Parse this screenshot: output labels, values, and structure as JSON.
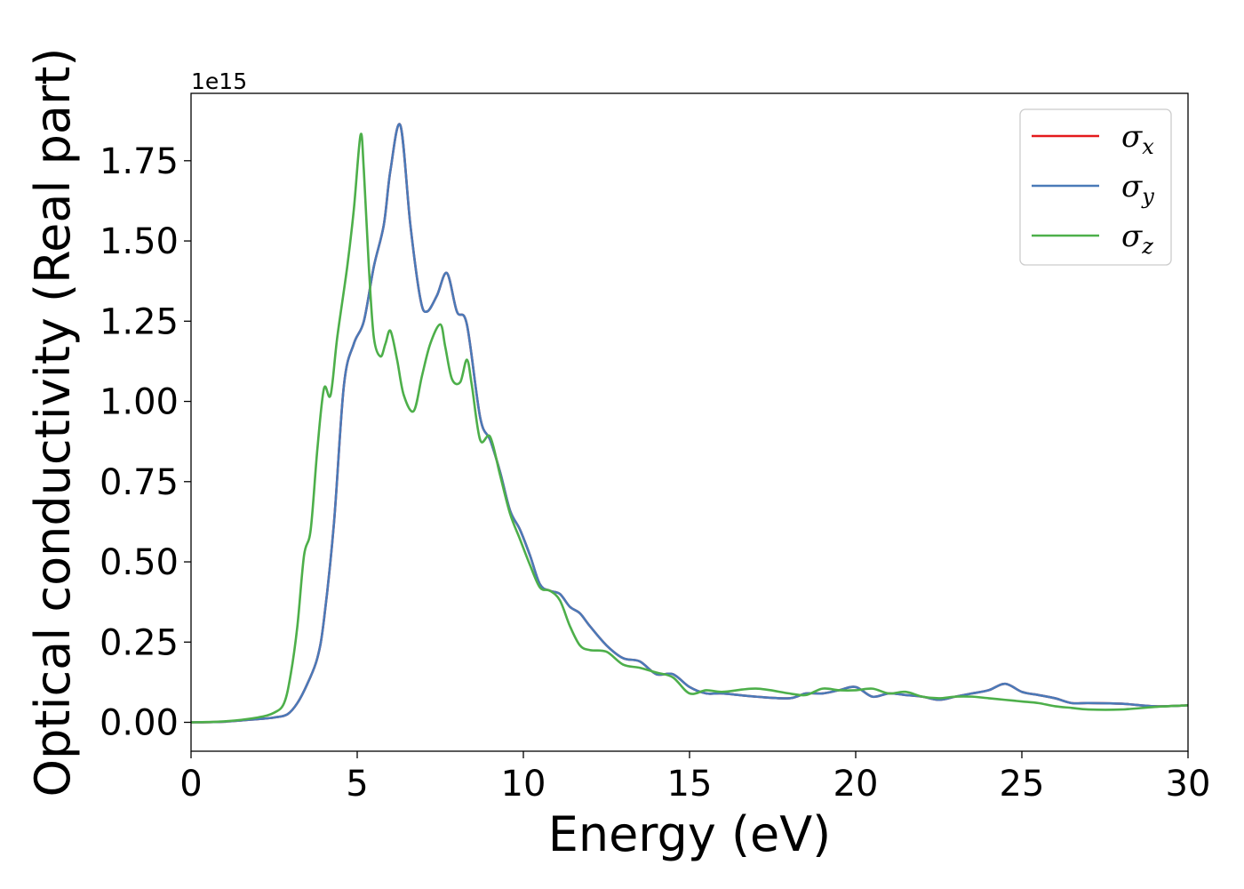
{
  "chart_data": {
    "type": "line",
    "title": "",
    "xlabel": "Energy (eV)",
    "ylabel": "Optical conductivity (Real part)",
    "y_offset_label": "1e15",
    "y_scale": 1000000000000000.0,
    "xlim": [
      0,
      30
    ],
    "ylim": [
      -0.09,
      1.96
    ],
    "xticks": [
      0,
      5,
      10,
      15,
      20,
      25,
      30
    ],
    "xtick_labels": [
      "0",
      "5",
      "10",
      "15",
      "20",
      "25",
      "30"
    ],
    "yticks": [
      0,
      0.25,
      0.5,
      0.75,
      1.0,
      1.25,
      1.5,
      1.75
    ],
    "ytick_labels": [
      "0.00",
      "0.25",
      "0.50",
      "0.75",
      "1.00",
      "1.25",
      "1.50",
      "1.75"
    ],
    "grid": false,
    "legend_position": "top-right",
    "series": [
      {
        "name": "σx",
        "name_base": "σ",
        "name_sub": "x",
        "color": "#e41a1c",
        "x": [
          0,
          1,
          2,
          2.5,
          2.9,
          3.2,
          3.5,
          3.8,
          4.0,
          4.3,
          4.6,
          4.9,
          5.2,
          5.5,
          5.8,
          6.0,
          6.3,
          6.6,
          6.9,
          7.1,
          7.4,
          7.7,
          8.0,
          8.3,
          8.7,
          9.0,
          9.3,
          9.6,
          9.9,
          10.2,
          10.5,
          10.8,
          11.1,
          11.4,
          11.7,
          12.0,
          12.5,
          13.0,
          13.5,
          14.0,
          14.5,
          15.0,
          15.5,
          16.0,
          17.0,
          18.0,
          18.5,
          19.0,
          19.5,
          20.0,
          20.5,
          21.0,
          21.5,
          22.0,
          22.5,
          23.0,
          23.5,
          24.0,
          24.5,
          25.0,
          25.5,
          26.0,
          26.5,
          27.0,
          28.0,
          29.0,
          30.0
        ],
        "y": [
          0.0,
          0.002,
          0.01,
          0.015,
          0.025,
          0.06,
          0.12,
          0.2,
          0.32,
          0.62,
          1.05,
          1.18,
          1.25,
          1.42,
          1.55,
          1.72,
          1.86,
          1.55,
          1.32,
          1.28,
          1.33,
          1.4,
          1.28,
          1.24,
          0.95,
          0.88,
          0.78,
          0.66,
          0.6,
          0.52,
          0.43,
          0.41,
          0.4,
          0.36,
          0.34,
          0.3,
          0.24,
          0.2,
          0.19,
          0.15,
          0.15,
          0.11,
          0.09,
          0.09,
          0.08,
          0.075,
          0.09,
          0.09,
          0.1,
          0.11,
          0.08,
          0.09,
          0.085,
          0.08,
          0.07,
          0.08,
          0.09,
          0.1,
          0.12,
          0.095,
          0.085,
          0.075,
          0.06,
          0.06,
          0.058,
          0.05,
          0.053
        ]
      },
      {
        "name": "σy",
        "name_base": "σ",
        "name_sub": "y",
        "color": "#4a7ab8",
        "x": [
          0,
          1,
          2,
          2.5,
          2.9,
          3.2,
          3.5,
          3.8,
          4.0,
          4.3,
          4.6,
          4.9,
          5.2,
          5.5,
          5.8,
          6.0,
          6.3,
          6.6,
          6.9,
          7.1,
          7.4,
          7.7,
          8.0,
          8.3,
          8.7,
          9.0,
          9.3,
          9.6,
          9.9,
          10.2,
          10.5,
          10.8,
          11.1,
          11.4,
          11.7,
          12.0,
          12.5,
          13.0,
          13.5,
          14.0,
          14.5,
          15.0,
          15.5,
          16.0,
          17.0,
          18.0,
          18.5,
          19.0,
          19.5,
          20.0,
          20.5,
          21.0,
          21.5,
          22.0,
          22.5,
          23.0,
          23.5,
          24.0,
          24.5,
          25.0,
          25.5,
          26.0,
          26.5,
          27.0,
          28.0,
          29.0,
          30.0
        ],
        "y": [
          0.0,
          0.002,
          0.01,
          0.015,
          0.025,
          0.06,
          0.12,
          0.2,
          0.32,
          0.62,
          1.05,
          1.18,
          1.25,
          1.42,
          1.55,
          1.72,
          1.86,
          1.55,
          1.32,
          1.28,
          1.33,
          1.4,
          1.28,
          1.24,
          0.95,
          0.88,
          0.78,
          0.66,
          0.6,
          0.52,
          0.43,
          0.41,
          0.4,
          0.36,
          0.34,
          0.3,
          0.24,
          0.2,
          0.19,
          0.15,
          0.15,
          0.11,
          0.09,
          0.09,
          0.08,
          0.075,
          0.09,
          0.09,
          0.1,
          0.11,
          0.08,
          0.09,
          0.085,
          0.08,
          0.07,
          0.08,
          0.09,
          0.1,
          0.12,
          0.095,
          0.085,
          0.075,
          0.06,
          0.06,
          0.058,
          0.05,
          0.053
        ]
      },
      {
        "name": "σz",
        "name_base": "σ",
        "name_sub": "z",
        "color": "#4daf4a",
        "x": [
          0,
          1,
          2,
          2.5,
          2.8,
          3.0,
          3.2,
          3.4,
          3.6,
          3.8,
          4.0,
          4.2,
          4.4,
          4.7,
          4.9,
          5.1,
          5.2,
          5.35,
          5.5,
          5.7,
          5.85,
          6.0,
          6.2,
          6.4,
          6.7,
          6.95,
          7.2,
          7.5,
          7.65,
          7.85,
          8.1,
          8.3,
          8.45,
          8.7,
          9.0,
          9.3,
          9.6,
          9.9,
          10.2,
          10.5,
          10.8,
          11.1,
          11.4,
          11.7,
          12.0,
          12.5,
          13.0,
          13.5,
          14.0,
          14.5,
          15.0,
          15.5,
          16.0,
          17.0,
          18.0,
          18.5,
          19.0,
          19.5,
          20.0,
          20.5,
          21.0,
          21.5,
          22.0,
          22.5,
          23.0,
          23.5,
          24.0,
          24.5,
          25.0,
          25.5,
          26.0,
          26.5,
          27.0,
          28.0,
          29.0,
          30.0
        ],
        "y": [
          0.0,
          0.003,
          0.015,
          0.03,
          0.06,
          0.15,
          0.3,
          0.52,
          0.6,
          0.85,
          1.04,
          1.02,
          1.2,
          1.42,
          1.6,
          1.83,
          1.72,
          1.42,
          1.2,
          1.14,
          1.18,
          1.22,
          1.13,
          1.02,
          0.97,
          1.08,
          1.18,
          1.24,
          1.17,
          1.07,
          1.06,
          1.13,
          1.05,
          0.88,
          0.89,
          0.77,
          0.65,
          0.57,
          0.49,
          0.42,
          0.41,
          0.38,
          0.3,
          0.24,
          0.225,
          0.22,
          0.18,
          0.17,
          0.155,
          0.14,
          0.09,
          0.1,
          0.095,
          0.105,
          0.09,
          0.085,
          0.105,
          0.1,
          0.1,
          0.105,
          0.09,
          0.095,
          0.08,
          0.075,
          0.08,
          0.08,
          0.075,
          0.07,
          0.065,
          0.06,
          0.05,
          0.045,
          0.04,
          0.04,
          0.048,
          0.053
        ]
      }
    ]
  }
}
